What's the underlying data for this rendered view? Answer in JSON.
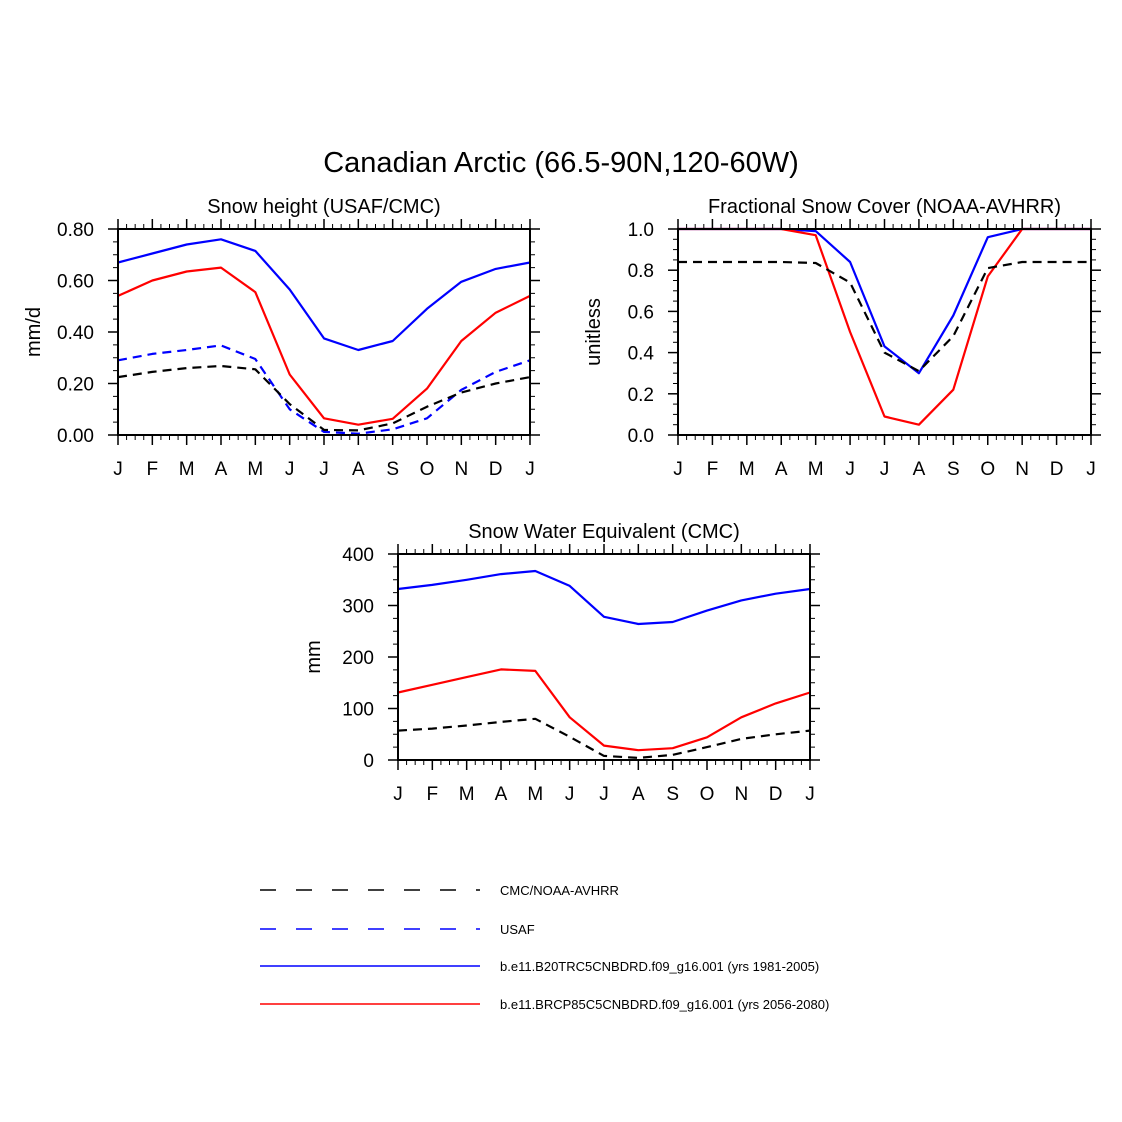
{
  "figure_title": "Canadian Arctic (66.5-90N,120-60W)",
  "series_styles": {
    "obs": {
      "color": "#000000",
      "dashed": true
    },
    "usaf": {
      "color": "#0000ff",
      "dashed": true
    },
    "hist": {
      "color": "#0000ff",
      "dashed": false
    },
    "future": {
      "color": "#ff0000",
      "dashed": false
    }
  },
  "legend": [
    {
      "key": "obs",
      "label": "CMC/NOAA-AVHRR"
    },
    {
      "key": "usaf",
      "label": "USAF"
    },
    {
      "key": "hist",
      "label": "b.e11.B20TRC5CNBDRD.f09_g16.001 (yrs 1981-2005)"
    },
    {
      "key": "future",
      "label": "b.e11.BRCP85C5CNBDRD.f09_g16.001 (yrs 2056-2080)"
    }
  ],
  "chart_data": [
    {
      "type": "line",
      "title": "Snow height (USAF/CMC)",
      "xlabel": "",
      "ylabel": "mm/d",
      "categories": [
        "J",
        "F",
        "M",
        "A",
        "M",
        "J",
        "J",
        "A",
        "S",
        "O",
        "N",
        "D",
        "J"
      ],
      "ylim": [
        0,
        0.8
      ],
      "yticks": [
        "0.00",
        "0.20",
        "0.40",
        "0.60",
        "0.80"
      ],
      "series": [
        {
          "name": "b.e11.B20TRC5CNBDRD.f09_g16.001 (yrs 1981-2005)",
          "style": "hist",
          "values": [
            0.67,
            0.705,
            0.74,
            0.76,
            0.715,
            0.565,
            0.375,
            0.33,
            0.365,
            0.49,
            0.595,
            0.645,
            0.67
          ]
        },
        {
          "name": "b.e11.BRCP85C5CNBDRD.f09_g16.001 (yrs 2056-2080)",
          "style": "future",
          "values": [
            0.54,
            0.6,
            0.635,
            0.65,
            0.555,
            0.235,
            0.065,
            0.04,
            0.063,
            0.18,
            0.365,
            0.475,
            0.54
          ]
        },
        {
          "name": "USAF",
          "style": "usaf",
          "values": [
            0.29,
            0.315,
            0.33,
            0.348,
            0.295,
            0.1,
            0.012,
            0.005,
            0.022,
            0.065,
            0.175,
            0.245,
            0.29
          ]
        },
        {
          "name": "CMC/NOAA-AVHRR",
          "style": "obs",
          "values": [
            0.225,
            0.245,
            0.26,
            0.268,
            0.255,
            0.12,
            0.02,
            0.018,
            0.045,
            0.11,
            0.165,
            0.2,
            0.225
          ]
        }
      ]
    },
    {
      "type": "line",
      "title": "Fractional Snow Cover (NOAA-AVHRR)",
      "xlabel": "",
      "ylabel": "unitless",
      "categories": [
        "J",
        "F",
        "M",
        "A",
        "M",
        "J",
        "J",
        "A",
        "S",
        "O",
        "N",
        "D",
        "J"
      ],
      "ylim": [
        0,
        1.0
      ],
      "yticks": [
        "0.0",
        "0.2",
        "0.4",
        "0.6",
        "0.8",
        "1.0"
      ],
      "series": [
        {
          "name": "b.e11.B20TRC5CNBDRD.f09_g16.001 (yrs 1981-2005)",
          "style": "hist",
          "values": [
            1.0,
            1.0,
            1.0,
            1.0,
            0.99,
            0.84,
            0.43,
            0.3,
            0.58,
            0.96,
            1.0,
            1.0,
            1.0
          ]
        },
        {
          "name": "b.e11.BRCP85C5CNBDRD.f09_g16.001 (yrs 2056-2080)",
          "style": "future",
          "values": [
            1.0,
            1.0,
            1.0,
            1.0,
            0.97,
            0.5,
            0.09,
            0.05,
            0.22,
            0.77,
            1.0,
            1.0,
            1.0
          ]
        },
        {
          "name": "CMC/NOAA-AVHRR",
          "style": "obs",
          "values": [
            0.84,
            0.84,
            0.84,
            0.84,
            0.835,
            0.74,
            0.4,
            0.31,
            0.48,
            0.81,
            0.84,
            0.84,
            0.84
          ]
        }
      ]
    },
    {
      "type": "line",
      "title": "Snow Water Equivalent (CMC)",
      "xlabel": "",
      "ylabel": "mm",
      "categories": [
        "J",
        "F",
        "M",
        "A",
        "M",
        "J",
        "J",
        "A",
        "S",
        "O",
        "N",
        "D",
        "J"
      ],
      "ylim": [
        0,
        400
      ],
      "yticks": [
        "0",
        "100",
        "200",
        "300",
        "400"
      ],
      "series": [
        {
          "name": "b.e11.B20TRC5CNBDRD.f09_g16.001 (yrs 1981-2005)",
          "style": "hist",
          "values": [
            332,
            340,
            350,
            361,
            367,
            338,
            278,
            264,
            268,
            290,
            310,
            323,
            332
          ]
        },
        {
          "name": "b.e11.BRCP85C5CNBDRD.f09_g16.001 (yrs 2056-2080)",
          "style": "future",
          "values": [
            131,
            146,
            161,
            176,
            173,
            83,
            28,
            19,
            23,
            44,
            83,
            110,
            131
          ]
        },
        {
          "name": "CMC/NOAA-AVHRR",
          "style": "obs",
          "values": [
            57,
            61,
            67,
            74,
            80,
            45,
            8,
            4,
            10,
            25,
            41,
            50,
            57
          ]
        }
      ]
    }
  ]
}
